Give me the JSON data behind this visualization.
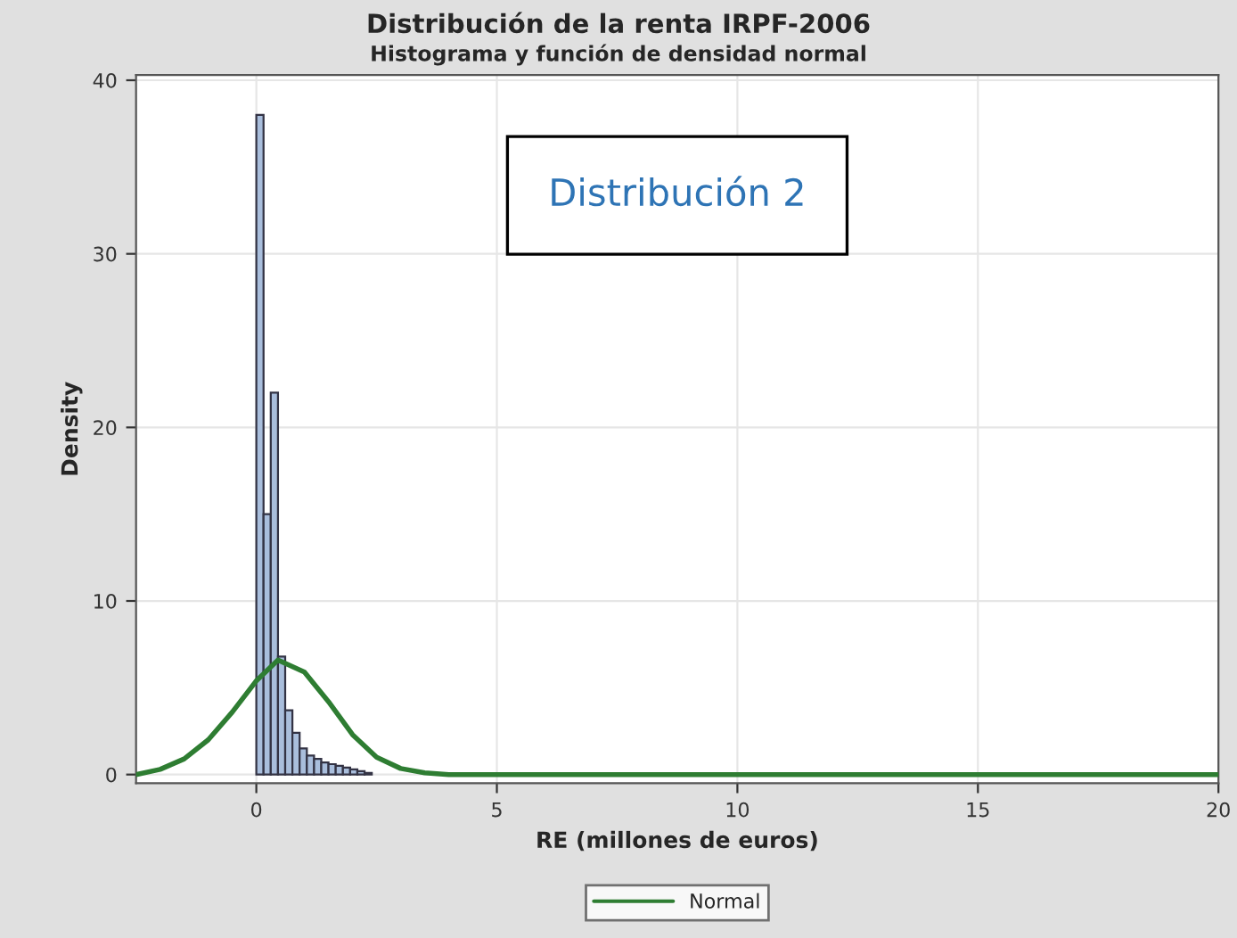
{
  "chart_data": {
    "type": "histogram",
    "title": "Distribución de la renta IRPF-2006",
    "subtitle": "Histograma y función de densidad normal",
    "xlabel": "RE (millones de euros)",
    "ylabel": "Density",
    "bins": [
      0,
      0.15,
      0.3,
      0.45,
      0.6,
      0.75,
      0.9,
      1.05,
      1.2,
      1.35,
      1.5,
      1.65,
      1.8,
      1.95,
      2.1,
      2.25,
      2.4
    ],
    "values": [
      38,
      15,
      22,
      6.8,
      3.7,
      2.4,
      1.5,
      1.1,
      0.9,
      0.7,
      0.6,
      0.5,
      0.4,
      0.3,
      0.2,
      0.1
    ],
    "color": "#a9bedc",
    "series": [
      {
        "name": "Normal",
        "type": "line",
        "color": "#2e7d32",
        "x": [
          -2.5,
          -2,
          -1.5,
          -1,
          -0.5,
          0,
          0.45,
          1,
          1.5,
          2,
          2.5,
          3,
          3.5,
          4,
          20
        ],
        "values": [
          0,
          0.3,
          0.9,
          2.0,
          3.6,
          5.4,
          6.6,
          5.9,
          4.2,
          2.3,
          1.0,
          0.35,
          0.1,
          0,
          0
        ]
      }
    ],
    "annotations": [
      "Distribución 2"
    ],
    "xlim": [
      -2.5,
      20
    ],
    "ylim": [
      -0.5,
      40.3
    ],
    "xticks": [
      0,
      5,
      10,
      15,
      20
    ],
    "yticks": [
      0,
      10,
      20,
      30,
      40
    ],
    "grid": true,
    "legend": "bottom"
  }
}
